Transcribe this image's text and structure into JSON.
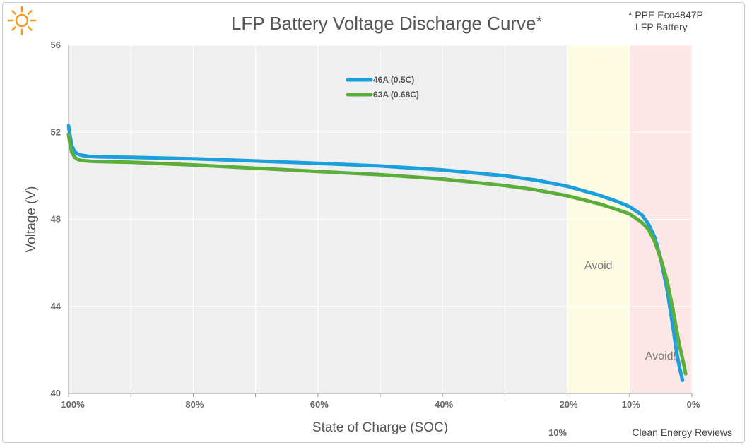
{
  "header": {
    "title": "LFP Battery Voltage Discharge Curve",
    "title_mark": "*",
    "note_line1": "* PPE Eco4847P",
    "note_line2": "LFP Battery",
    "logo_icon": "sun-icon",
    "credit": "Clean Energy Reviews"
  },
  "colors": {
    "series_46a": "#1aa0dc",
    "series_63a": "#5cae3a",
    "avoid_zone": "#fdfce3",
    "avoid_danger_zone": "#fce6e6",
    "plot_bg": "#efefef",
    "sun": "#f39a1e"
  },
  "chart_data": {
    "type": "line",
    "title": "LFP Battery Voltage Discharge Curve",
    "xlabel": "State of Charge (SOC)",
    "ylabel": "Voltage (V)",
    "xlim": [
      100,
      0
    ],
    "ylim": [
      40,
      56
    ],
    "x_ticks": [
      100,
      80,
      60,
      40,
      20,
      10,
      0
    ],
    "x_tick_labels": [
      "100%",
      "80%",
      "60%",
      "40%",
      "20%",
      "10%",
      "0%"
    ],
    "y_ticks": [
      40,
      44,
      48,
      52,
      56
    ],
    "y_tick_labels": [
      "40",
      "44",
      "48",
      "52",
      "56"
    ],
    "extra_label": "10%",
    "grid": true,
    "legend_position": "top-center",
    "regions": [
      {
        "from": 20,
        "to": 10,
        "label": "Avoid",
        "color": "#fdfce3"
      },
      {
        "from": 10,
        "to": 0,
        "label": "Avoid!",
        "color": "#fce6e6"
      }
    ],
    "series": [
      {
        "name": "46A (0.5C)",
        "x": [
          100,
          99.8,
          99.5,
          99,
          98.5,
          98,
          97,
          96,
          95,
          90,
          80,
          70,
          60,
          50,
          40,
          30,
          25,
          20,
          15,
          12,
          10,
          8,
          7,
          6,
          5,
          4,
          3,
          2.5,
          2,
          1.5
        ],
        "y": [
          52.3,
          51.9,
          51.4,
          51.1,
          51.0,
          50.95,
          50.9,
          50.88,
          50.87,
          50.85,
          50.78,
          50.68,
          50.57,
          50.45,
          50.27,
          50.0,
          49.8,
          49.52,
          49.12,
          48.82,
          48.58,
          48.2,
          47.8,
          47.2,
          46.2,
          44.8,
          43.0,
          42.0,
          41.2,
          40.6
        ]
      },
      {
        "name": "63A (0.68C)",
        "x": [
          100,
          99.8,
          99.5,
          99,
          98.5,
          98,
          97,
          96,
          95,
          90,
          80,
          70,
          60,
          50,
          40,
          30,
          25,
          20,
          15,
          12,
          10,
          8,
          7,
          6,
          5,
          4,
          3,
          2.5,
          2,
          1.5,
          1.0
        ],
        "y": [
          51.9,
          51.5,
          51.1,
          50.85,
          50.75,
          50.7,
          50.68,
          50.66,
          50.65,
          50.62,
          50.5,
          50.35,
          50.2,
          50.05,
          49.85,
          49.55,
          49.35,
          49.08,
          48.72,
          48.45,
          48.25,
          47.85,
          47.55,
          47.0,
          46.2,
          45.2,
          43.8,
          43.0,
          42.2,
          41.6,
          40.9
        ]
      }
    ]
  }
}
